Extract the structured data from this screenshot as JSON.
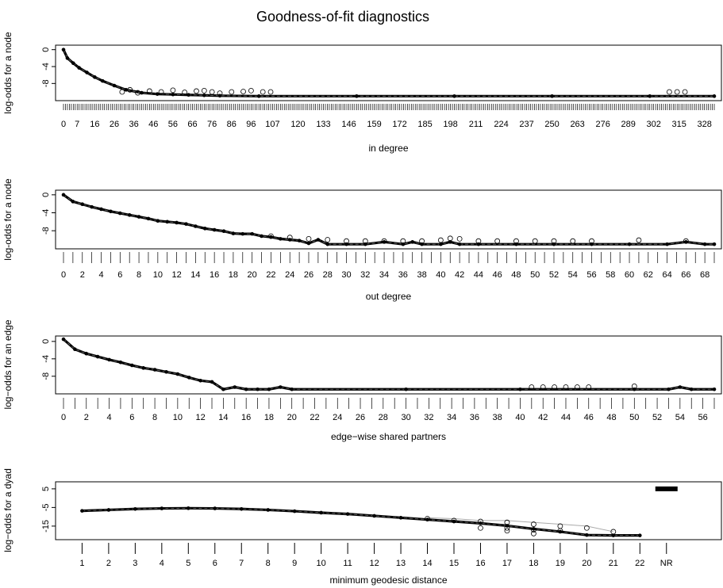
{
  "title": "Goodness-of-fit diagnostics",
  "chart_data": [
    {
      "type": "line",
      "xlabel": "in degree",
      "ylabel": "log-odds for a node",
      "yticks": [
        0,
        -4,
        -8
      ],
      "ylim": [
        -11.5,
        0.5
      ],
      "x_domain": [
        0,
        333
      ],
      "xtick_labels": [
        0,
        7,
        16,
        26,
        36,
        46,
        56,
        66,
        76,
        86,
        96,
        107,
        120,
        133,
        146,
        159,
        172,
        185,
        198,
        211,
        224,
        237,
        250,
        263,
        276,
        289,
        302,
        315,
        328
      ],
      "series": [
        {
          "x": [
            0,
            2,
            5,
            8,
            12,
            16,
            20,
            26,
            32,
            40,
            48,
            56,
            64,
            72,
            80,
            100,
            150,
            200,
            250,
            300,
            333
          ],
          "values": [
            0,
            -2,
            -3.2,
            -4.3,
            -5.4,
            -6.5,
            -7.4,
            -8.5,
            -9.5,
            -10.2,
            -10.5,
            -10.6,
            -10.7,
            -10.8,
            -10.9,
            -11,
            -11,
            -11,
            -11,
            -11,
            -11
          ]
        }
      ],
      "outlier_x": [
        30,
        34,
        38,
        44,
        50,
        56,
        62,
        68,
        72,
        76,
        80,
        86,
        92,
        96,
        102,
        106,
        310,
        314,
        318
      ],
      "outlier_y": [
        -10,
        -9.5,
        -10.2,
        -9.8,
        -10,
        -9.6,
        -10.1,
        -9.8,
        -9.7,
        -10,
        -10.3,
        -10,
        -9.9,
        -9.7,
        -10,
        -10,
        -10,
        -10,
        -10
      ]
    },
    {
      "type": "line",
      "xlabel": "out degree",
      "ylabel": "log-odds for a node",
      "yticks": [
        0,
        -4,
        -8
      ],
      "ylim": [
        -11.5,
        0.5
      ],
      "x_domain": [
        0,
        69
      ],
      "xtick_labels": [
        0,
        2,
        4,
        6,
        8,
        10,
        12,
        14,
        16,
        18,
        20,
        22,
        24,
        26,
        28,
        30,
        32,
        34,
        36,
        38,
        40,
        42,
        44,
        46,
        48,
        50,
        52,
        54,
        56,
        58,
        60,
        62,
        64,
        66,
        68
      ],
      "series": [
        {
          "x": [
            0,
            1,
            2,
            3,
            4,
            5,
            6,
            7,
            8,
            9,
            10,
            11,
            12,
            13,
            14,
            15,
            16,
            17,
            18,
            19,
            20,
            21,
            22,
            23,
            24,
            25,
            26,
            27,
            28,
            30,
            32,
            34,
            36,
            37,
            38,
            40,
            41,
            42,
            44,
            48,
            52,
            56,
            60,
            64,
            66,
            68,
            69
          ],
          "values": [
            0,
            -1.5,
            -2.1,
            -2.7,
            -3.2,
            -3.7,
            -4.1,
            -4.5,
            -4.9,
            -5.3,
            -5.8,
            -6,
            -6.2,
            -6.5,
            -7,
            -7.5,
            -7.8,
            -8.1,
            -8.6,
            -8.7,
            -8.7,
            -9.2,
            -9.4,
            -9.8,
            -10,
            -10.2,
            -10.8,
            -10,
            -11,
            -11,
            -11,
            -10.5,
            -11,
            -10.5,
            -11,
            -11,
            -10.5,
            -11,
            -11,
            -11,
            -11,
            -11,
            -11,
            -11,
            -10.5,
            -11,
            -11
          ]
        }
      ],
      "outlier_x": [
        22,
        24,
        26,
        28,
        30,
        32,
        34,
        36,
        38,
        40,
        41,
        42,
        44,
        46,
        48,
        50,
        52,
        54,
        56,
        61,
        66
      ],
      "outlier_y": [
        -9.2,
        -9.5,
        -9.8,
        -10,
        -10.3,
        -10.3,
        -10.3,
        -10.3,
        -10.3,
        -10.1,
        -9.7,
        -9.8,
        -10.3,
        -10.3,
        -10.3,
        -10.3,
        -10.3,
        -10.3,
        -10.3,
        -10.1,
        -10.3
      ]
    },
    {
      "type": "line",
      "xlabel": "edge−wise shared partners",
      "ylabel": "log−odds for an edge",
      "yticks": [
        0,
        -4,
        -8
      ],
      "ylim": [
        -11.5,
        0.7
      ],
      "x_domain": [
        0,
        57
      ],
      "xtick_labels": [
        0,
        2,
        4,
        6,
        8,
        10,
        12,
        14,
        16,
        18,
        20,
        22,
        24,
        26,
        28,
        30,
        32,
        34,
        36,
        38,
        40,
        42,
        44,
        46,
        48,
        50,
        52,
        54,
        56
      ],
      "series": [
        {
          "x": [
            0,
            1,
            2,
            3,
            4,
            5,
            6,
            7,
            8,
            9,
            10,
            11,
            12,
            13,
            14,
            15,
            16,
            17,
            18,
            19,
            20,
            30,
            40,
            50,
            53,
            54,
            55,
            57
          ],
          "values": [
            0.5,
            -1.8,
            -2.8,
            -3.5,
            -4.2,
            -4.8,
            -5.5,
            -6.1,
            -6.5,
            -7,
            -7.5,
            -8.3,
            -9,
            -9.3,
            -11,
            -10.5,
            -11,
            -11,
            -11,
            -10.5,
            -11,
            -11,
            -11,
            -11,
            -11,
            -10.5,
            -11,
            -11
          ]
        }
      ],
      "outlier_x": [
        41,
        42,
        43,
        44,
        45,
        46,
        50
      ],
      "outlier_y": [
        -10.5,
        -10.5,
        -10.5,
        -10.5,
        -10.5,
        -10.5,
        -10.3
      ]
    },
    {
      "type": "line",
      "xlabel": "minimum geodesic distance",
      "ylabel": "log−odds for a dyad",
      "yticks": [
        5,
        -5,
        -15
      ],
      "ylim": [
        -21,
        7.5
      ],
      "x_domain": [
        0.3,
        24.8
      ],
      "categories": [
        "1",
        "2",
        "3",
        "4",
        "5",
        "6",
        "7",
        "8",
        "9",
        "10",
        "11",
        "12",
        "13",
        "14",
        "15",
        "16",
        "17",
        "18",
        "19",
        "20",
        "21",
        "22",
        "NR"
      ],
      "series": [
        {
          "values": [
            -6.8,
            -6.3,
            -5.8,
            -5.5,
            -5.4,
            -5.5,
            -5.8,
            -6.3,
            -7,
            -7.8,
            -8.5,
            -9.5,
            -10.5,
            -11.5,
            -12.5,
            -13.5,
            -14.8,
            -16.5,
            -18,
            -19.8,
            -20,
            -20,
            5
          ]
        }
      ],
      "upper_band": [
        null,
        null,
        null,
        null,
        null,
        null,
        null,
        null,
        null,
        null,
        null,
        null,
        null,
        -10.5,
        -11,
        -12,
        -12,
        -13,
        -14,
        -15,
        -18,
        null,
        null
      ],
      "outlier_x": [
        14,
        15,
        16,
        17,
        17,
        18,
        18,
        19,
        20,
        21,
        16,
        17,
        18,
        19
      ],
      "outlier_y": [
        -11,
        -12,
        -12.5,
        -13,
        -17.5,
        -14,
        -19,
        -15,
        -16,
        -18,
        -16,
        -16,
        -17,
        -17.5
      ]
    }
  ]
}
